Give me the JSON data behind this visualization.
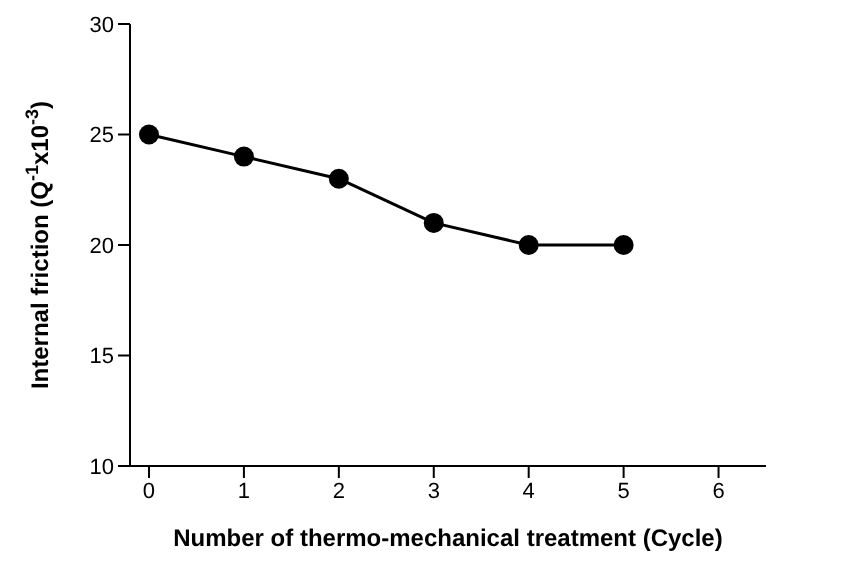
{
  "chart_data": {
    "type": "line",
    "xlabel": "Number of thermo-mechanical treatment (Cycle)",
    "ylabel": "Internal friction (Q$^{-1}$x10$^{-3}$)",
    "x": [
      0,
      1,
      2,
      3,
      4,
      5
    ],
    "series": [
      {
        "color": "#000000",
        "values": [
          25,
          24,
          23,
          21,
          20,
          20
        ]
      }
    ],
    "xlim": [
      -0.2,
      6.5
    ],
    "xticks": [
      0,
      1,
      2,
      3,
      4,
      5,
      6
    ],
    "ylim": [
      10,
      30
    ],
    "yticks": [
      10,
      15,
      20,
      25,
      30
    ],
    "marker": "circle",
    "line_style": "solid",
    "grid": false,
    "legend": false
  }
}
